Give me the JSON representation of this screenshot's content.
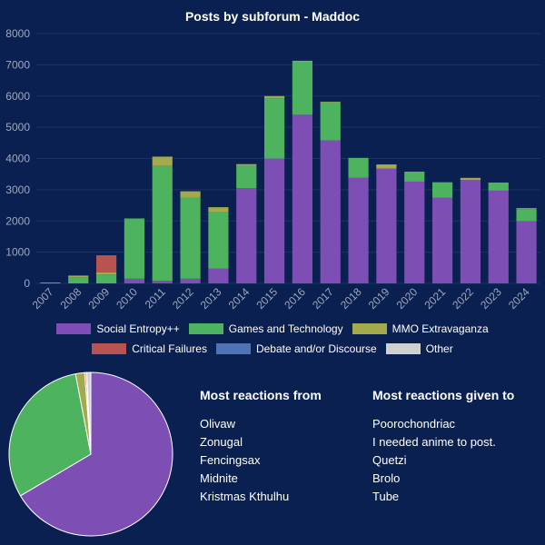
{
  "chart_data": [
    {
      "type": "bar",
      "stacked": true,
      "title": "Posts by subforum - Maddoc",
      "categories": [
        "2007",
        "2008",
        "2009",
        "2010",
        "2011",
        "2012",
        "2013",
        "2014",
        "2015",
        "2016",
        "2017",
        "2018",
        "2019",
        "2020",
        "2021",
        "2022",
        "2023",
        "2024"
      ],
      "ylim": [
        0,
        8000
      ],
      "yticks": [
        0,
        1000,
        2000,
        3000,
        4000,
        5000,
        6000,
        7000,
        8000
      ],
      "grid": true,
      "legend_position": "bottom",
      "series": [
        {
          "name": "Social Entropy++",
          "color": "#7d4fb5",
          "values": [
            0,
            0,
            0,
            150,
            80,
            150,
            480,
            3050,
            4000,
            5400,
            4580,
            3380,
            3680,
            3260,
            2740,
            3310,
            2970,
            1990
          ]
        },
        {
          "name": "Games and Technology",
          "color": "#4db35e",
          "values": [
            30,
            200,
            280,
            1930,
            3680,
            2600,
            1800,
            720,
            1930,
            1700,
            1220,
            640,
            0,
            300,
            500,
            0,
            260,
            390
          ]
        },
        {
          "name": "MMO Extravaganza",
          "color": "#a3aa4b",
          "values": [
            0,
            50,
            70,
            0,
            300,
            200,
            160,
            50,
            70,
            30,
            20,
            0,
            130,
            20,
            0,
            70,
            0,
            30
          ]
        },
        {
          "name": "Critical Failures",
          "color": "#b85450",
          "values": [
            0,
            0,
            550,
            0,
            0,
            0,
            0,
            0,
            0,
            0,
            0,
            0,
            0,
            0,
            0,
            0,
            0,
            0
          ]
        },
        {
          "name": "Debate and/or Discourse",
          "color": "#4e74b5",
          "values": [
            0,
            0,
            0,
            0,
            0,
            0,
            0,
            0,
            0,
            0,
            0,
            0,
            0,
            0,
            0,
            0,
            0,
            0
          ]
        },
        {
          "name": "Other",
          "color": "#d0d0d0",
          "values": [
            0,
            0,
            0,
            0,
            0,
            0,
            0,
            0,
            0,
            0,
            0,
            0,
            0,
            0,
            0,
            0,
            0,
            0
          ]
        }
      ]
    },
    {
      "type": "pie",
      "slices": [
        {
          "name": "Social Entropy++",
          "value": 66.5,
          "color": "#7d4fb5"
        },
        {
          "name": "Games and Technology",
          "value": 30.5,
          "color": "#4db35e"
        },
        {
          "name": "MMO Extravaganza",
          "value": 1.8,
          "color": "#a3aa4b"
        },
        {
          "name": "Critical Failures",
          "value": 0.3,
          "color": "#b85450"
        },
        {
          "name": "Debate and/or Discourse",
          "value": 0.1,
          "color": "#4e74b5"
        },
        {
          "name": "Other",
          "value": 0.8,
          "color": "#d0d0d0"
        }
      ]
    }
  ],
  "most_reactions_from": {
    "heading": "Most reactions from",
    "names": [
      "Olivaw",
      "Zonugal",
      "Fencingsax",
      "Midnite",
      "Kristmas Kthulhu"
    ]
  },
  "most_reactions_given": {
    "heading": "Most reactions given to",
    "names": [
      "Poorochondriac",
      "I needed anime to post.",
      "Quetzi",
      "Brolo",
      "Tube"
    ]
  },
  "colors": {
    "background": "#0a2050",
    "grid": "#1c3264",
    "axis_text": "#a0a8bc"
  }
}
